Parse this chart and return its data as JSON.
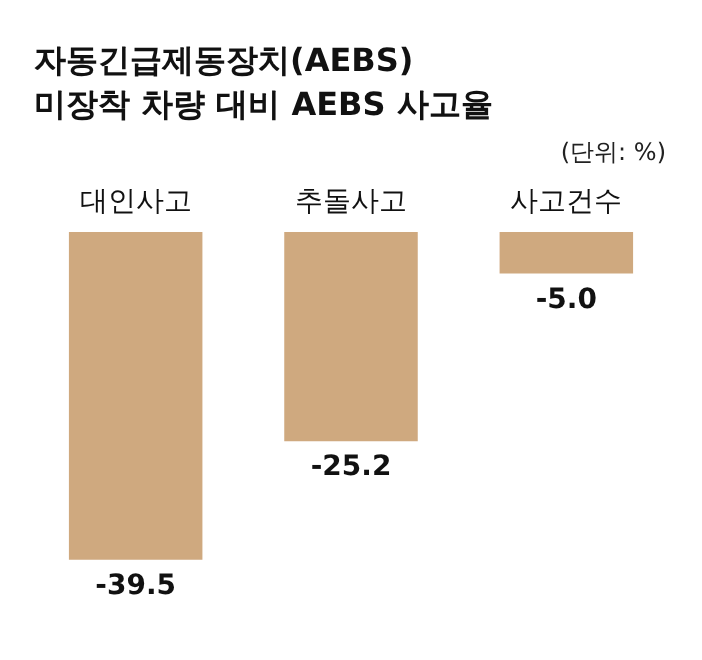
{
  "chart_data": {
    "type": "bar",
    "title": "자동긴급제동장치(AEBS)\n미장착 차량 대비 AEBS 사고율",
    "categories": [
      "대인사고",
      "추돌사고",
      "사고건수"
    ],
    "values": [
      -39.5,
      -25.2,
      -5.0
    ],
    "value_labels": [
      "-39.5",
      "-25.2",
      "-5.0"
    ],
    "color": "#cfa97f",
    "annotations": [
      "(단위: %)"
    ],
    "grid": false
  }
}
